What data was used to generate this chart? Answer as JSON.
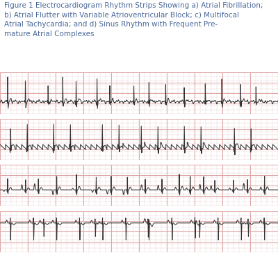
{
  "title_text": "Figure 1 Electrocardiogram Rhythm Strips Showing a) Atrial Fibrillation;\nb) Atrial Flutter with Variable Atrioventricular Block; c) Multifocal\nAtrial Tachycardia; and d) Sinus Rhythm with Frequent Pre-\nmature Atrial Complexes",
  "title_color": "#4a6899",
  "background_color": "#ffffff",
  "strip_bg_color": "#f8dede",
  "grid_major_color": "#e0a8a8",
  "grid_minor_color": "#edd4d4",
  "ecg_color": "#333333",
  "border_color": "#7799cc",
  "n_strips": 4,
  "title_fontsize": 7.5,
  "fig_width": 4.0,
  "fig_height": 4.0
}
